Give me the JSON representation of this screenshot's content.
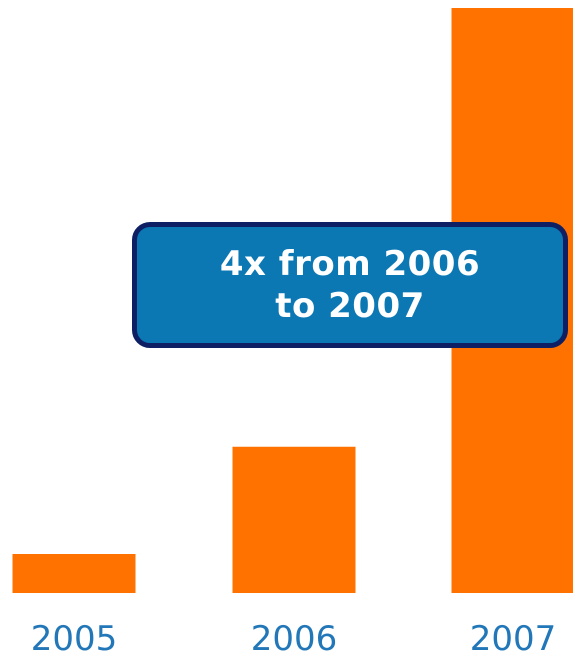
{
  "chart_data": {
    "type": "bar",
    "categories": [
      "2005",
      "2006",
      "2007"
    ],
    "values": [
      1,
      3.75,
      15
    ],
    "ylim": [
      0,
      15
    ],
    "grid": false,
    "bar_color": "#ff7200",
    "label_color": "#2277b8",
    "annotation": {
      "lines": [
        "4x from 2006",
        "to 2007"
      ],
      "background_color": "#0b78b4",
      "border_color": "#0e1f63"
    }
  }
}
